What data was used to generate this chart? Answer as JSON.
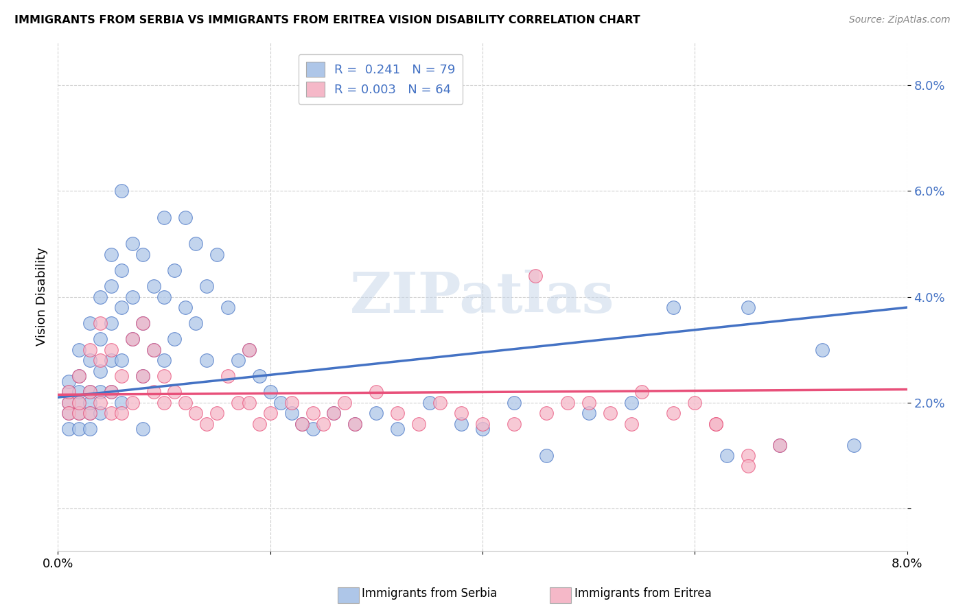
{
  "title": "IMMIGRANTS FROM SERBIA VS IMMIGRANTS FROM ERITREA VISION DISABILITY CORRELATION CHART",
  "source": "Source: ZipAtlas.com",
  "ylabel": "Vision Disability",
  "xlim": [
    0.0,
    0.08
  ],
  "ylim": [
    -0.008,
    0.088
  ],
  "serbia_R": 0.241,
  "serbia_N": 79,
  "eritrea_R": 0.003,
  "eritrea_N": 64,
  "serbia_color": "#aec6e8",
  "eritrea_color": "#f5b8c8",
  "serbia_line_color": "#4472c4",
  "eritrea_line_color": "#e8507a",
  "serbia_line_start_y": 0.021,
  "serbia_line_end_y": 0.038,
  "eritrea_line_start_y": 0.0215,
  "eritrea_line_end_y": 0.0225,
  "serbia_x": [
    0.001,
    0.001,
    0.001,
    0.001,
    0.001,
    0.002,
    0.002,
    0.002,
    0.002,
    0.002,
    0.002,
    0.003,
    0.003,
    0.003,
    0.003,
    0.003,
    0.003,
    0.004,
    0.004,
    0.004,
    0.004,
    0.004,
    0.005,
    0.005,
    0.005,
    0.005,
    0.005,
    0.006,
    0.006,
    0.006,
    0.006,
    0.007,
    0.007,
    0.007,
    0.008,
    0.008,
    0.008,
    0.009,
    0.009,
    0.01,
    0.01,
    0.01,
    0.011,
    0.011,
    0.012,
    0.012,
    0.013,
    0.013,
    0.014,
    0.014,
    0.015,
    0.016,
    0.017,
    0.018,
    0.019,
    0.02,
    0.021,
    0.022,
    0.023,
    0.024,
    0.026,
    0.028,
    0.03,
    0.032,
    0.035,
    0.038,
    0.04,
    0.043,
    0.046,
    0.05,
    0.054,
    0.058,
    0.063,
    0.068,
    0.065,
    0.072,
    0.075,
    0.006,
    0.008
  ],
  "serbia_y": [
    0.02,
    0.022,
    0.018,
    0.024,
    0.015,
    0.025,
    0.03,
    0.02,
    0.018,
    0.022,
    0.015,
    0.035,
    0.028,
    0.022,
    0.018,
    0.015,
    0.02,
    0.04,
    0.032,
    0.026,
    0.022,
    0.018,
    0.048,
    0.042,
    0.035,
    0.028,
    0.022,
    0.045,
    0.038,
    0.028,
    0.02,
    0.05,
    0.04,
    0.032,
    0.048,
    0.035,
    0.025,
    0.042,
    0.03,
    0.055,
    0.04,
    0.028,
    0.045,
    0.032,
    0.055,
    0.038,
    0.05,
    0.035,
    0.042,
    0.028,
    0.048,
    0.038,
    0.028,
    0.03,
    0.025,
    0.022,
    0.02,
    0.018,
    0.016,
    0.015,
    0.018,
    0.016,
    0.018,
    0.015,
    0.02,
    0.016,
    0.015,
    0.02,
    0.01,
    0.018,
    0.02,
    0.038,
    0.01,
    0.012,
    0.038,
    0.03,
    0.012,
    0.06,
    0.015
  ],
  "eritrea_x": [
    0.001,
    0.001,
    0.001,
    0.002,
    0.002,
    0.002,
    0.003,
    0.003,
    0.003,
    0.004,
    0.004,
    0.004,
    0.005,
    0.005,
    0.005,
    0.006,
    0.006,
    0.007,
    0.007,
    0.008,
    0.008,
    0.009,
    0.009,
    0.01,
    0.01,
    0.011,
    0.012,
    0.013,
    0.014,
    0.015,
    0.016,
    0.017,
    0.018,
    0.018,
    0.019,
    0.02,
    0.022,
    0.023,
    0.024,
    0.025,
    0.026,
    0.027,
    0.028,
    0.03,
    0.032,
    0.034,
    0.036,
    0.038,
    0.04,
    0.043,
    0.046,
    0.05,
    0.054,
    0.058,
    0.062,
    0.045,
    0.048,
    0.052,
    0.065,
    0.055,
    0.06,
    0.062,
    0.065,
    0.068
  ],
  "eritrea_y": [
    0.02,
    0.018,
    0.022,
    0.025,
    0.018,
    0.02,
    0.03,
    0.022,
    0.018,
    0.035,
    0.028,
    0.02,
    0.03,
    0.022,
    0.018,
    0.025,
    0.018,
    0.032,
    0.02,
    0.035,
    0.025,
    0.03,
    0.022,
    0.025,
    0.02,
    0.022,
    0.02,
    0.018,
    0.016,
    0.018,
    0.025,
    0.02,
    0.03,
    0.02,
    0.016,
    0.018,
    0.02,
    0.016,
    0.018,
    0.016,
    0.018,
    0.02,
    0.016,
    0.022,
    0.018,
    0.016,
    0.02,
    0.018,
    0.016,
    0.016,
    0.018,
    0.02,
    0.016,
    0.018,
    0.016,
    0.044,
    0.02,
    0.018,
    0.01,
    0.022,
    0.02,
    0.016,
    0.008,
    0.012
  ]
}
